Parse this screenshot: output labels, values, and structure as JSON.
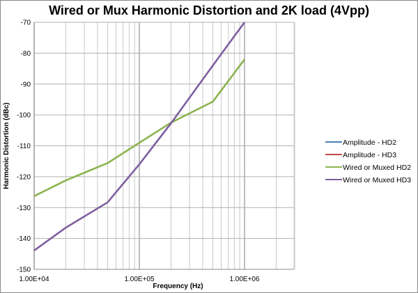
{
  "chart_data": {
    "type": "line",
    "title": "Wired or Mux Harmonic Distortion and 2K load (4Vpp)",
    "xlabel": "Frequency (Hz)",
    "ylabel": "Harmonic Distortion (dBc)",
    "xscale": "log",
    "xlim": [
      10000,
      3000000
    ],
    "ylim": [
      -150,
      -70
    ],
    "x_tick_labels": [
      "1.00E+04",
      "1.00E+05",
      "1.00E+06"
    ],
    "y_tick_labels": [
      "-70",
      "-80",
      "-90",
      "-100",
      "-110",
      "-120",
      "-130",
      "-140",
      "-150"
    ],
    "grid": true,
    "legend": "right",
    "x": [
      10000,
      20000,
      50000,
      100000,
      200000,
      500000,
      1000000
    ],
    "series": [
      {
        "name": "Amplitude - HD2",
        "color": "#4a7ebb",
        "values": [
          -126.2,
          -121.2,
          -115.5,
          -109,
          -102.5,
          -95.8,
          -82.2
        ]
      },
      {
        "name": "Amplitude - HD3",
        "color": "#be4b48",
        "values": [
          -143.8,
          -136.5,
          -128.3,
          -116,
          -102.8,
          -84,
          -70.2
        ]
      },
      {
        "name": "Wired or Muxed HD2",
        "color": "#8cb44f",
        "values": [
          -126.3,
          -121.2,
          -115.6,
          -109,
          -102.5,
          -95.7,
          -82
        ]
      },
      {
        "name": "Wired or Muxed HD3",
        "color": "#7d5fa0",
        "values": [
          -143.9,
          -136.5,
          -128.3,
          -116,
          -102.7,
          -84,
          -70
        ]
      }
    ]
  }
}
